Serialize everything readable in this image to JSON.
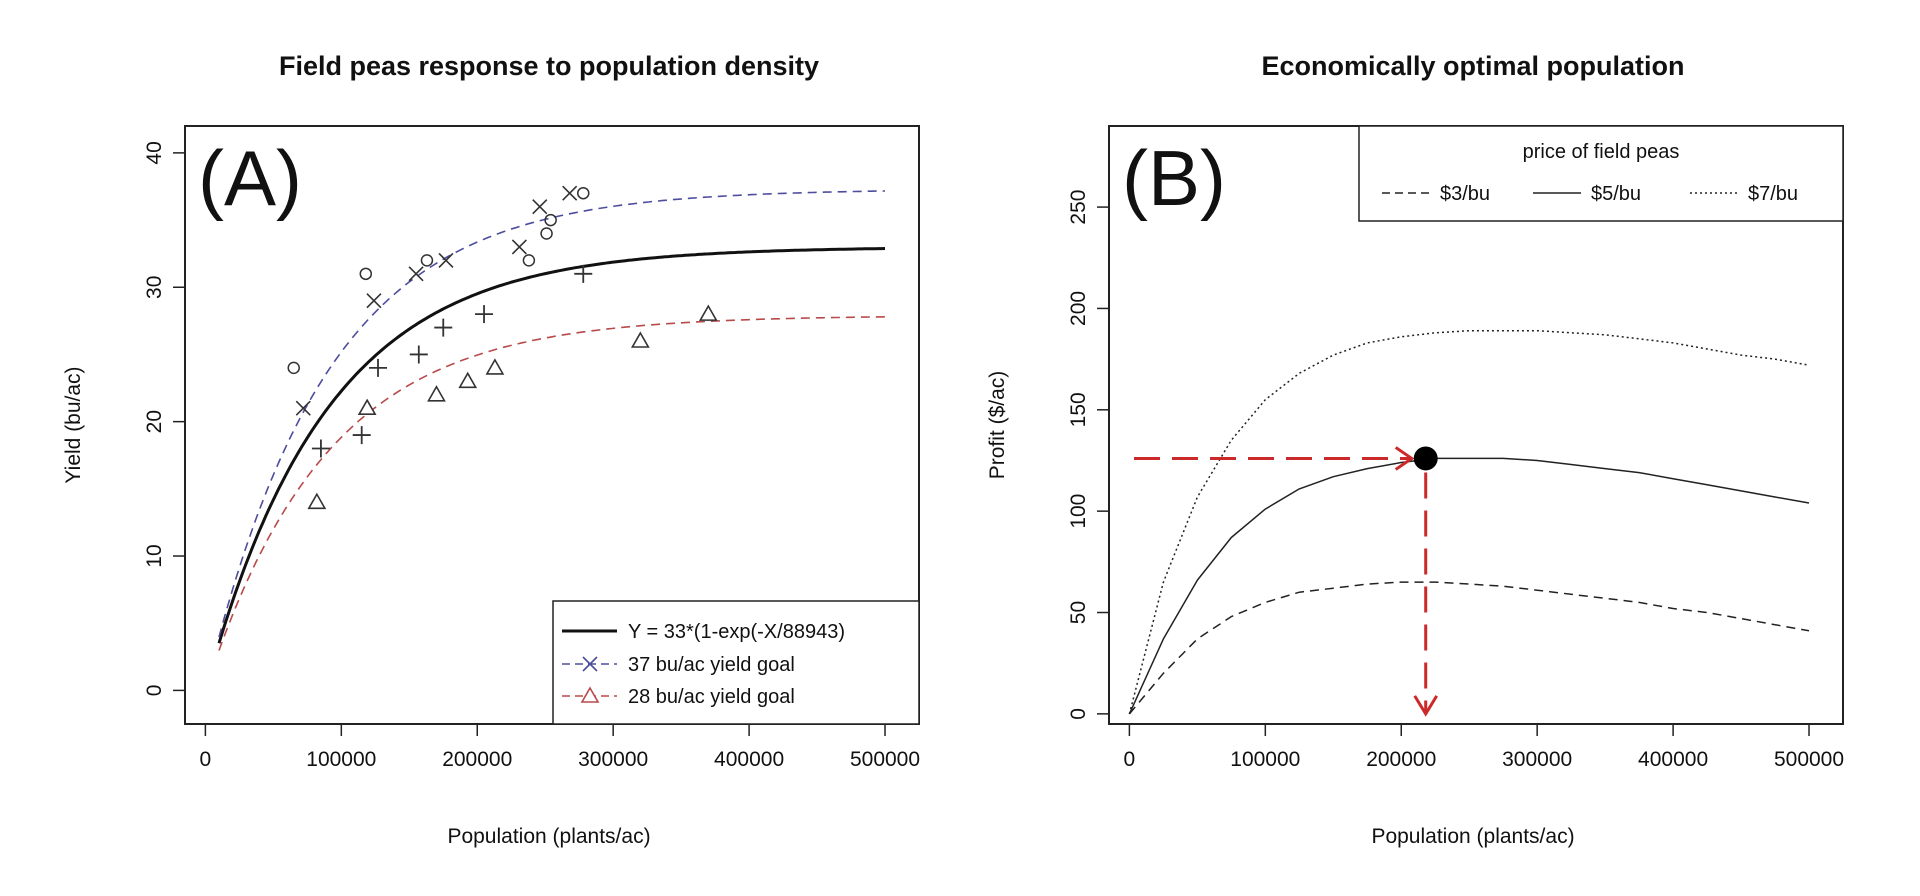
{
  "chart_data": [
    {
      "type": "scatter",
      "panel_label": "(A)",
      "title": "Field peas response to population density",
      "xlabel": "Population (plants/ac)",
      "ylabel": "Yield (bu/ac)",
      "xlim": [
        -15000,
        525000
      ],
      "ylim": [
        -2.5,
        42
      ],
      "xticks": [
        0,
        100000,
        200000,
        300000,
        400000,
        500000
      ],
      "xtick_labels": [
        "0",
        "100000",
        "200000",
        "300000",
        "400000",
        "500000"
      ],
      "yticks": [
        0,
        10,
        20,
        30,
        40
      ],
      "ytick_labels": [
        "0",
        "10",
        "20",
        "30",
        "40"
      ],
      "legend_position": "bottom-right",
      "lines": [
        {
          "name": "Y = 33*(1-exp(-X/88943)",
          "asymptote": 33,
          "rate": 88943,
          "x_start": 10000,
          "x_end": 500000,
          "color": "#111111",
          "style": "solid"
        },
        {
          "name": "37 bu/ac yield goal",
          "asymptote": 37.3,
          "rate": 88943,
          "x_start": 10000,
          "x_end": 500000,
          "color": "#4d4d9e",
          "style": "dashed",
          "marker": "x"
        },
        {
          "name": "28 bu/ac yield goal",
          "asymptote": 27.9,
          "rate": 88943,
          "x_start": 10000,
          "x_end": 500000,
          "color": "#b84a4a",
          "style": "dashed",
          "marker": "triangle"
        }
      ],
      "points": [
        {
          "marker": "circle",
          "x": [
            65000,
            118000,
            163000,
            238000,
            251000,
            254000,
            278000
          ],
          "y": [
            24,
            31,
            32,
            32,
            34,
            35,
            37
          ]
        },
        {
          "marker": "x",
          "x": [
            72000,
            124000,
            155000,
            177000,
            231000,
            246000,
            268000
          ],
          "y": [
            21,
            29,
            31,
            32,
            33,
            36,
            37
          ]
        },
        {
          "marker": "plus",
          "x": [
            85000,
            115000,
            127000,
            157000,
            175000,
            205000,
            278000
          ],
          "y": [
            18,
            19,
            24,
            25,
            27,
            28,
            31
          ]
        },
        {
          "marker": "triangle",
          "x": [
            82000,
            119000,
            170000,
            193000,
            213000,
            320000,
            370000
          ],
          "y": [
            14,
            21,
            22,
            23,
            24,
            26,
            28
          ]
        }
      ]
    },
    {
      "type": "line",
      "panel_label": "(B)",
      "title": "Economically optimal population",
      "xlabel": "Population (plants/ac)",
      "ylabel": "Profit ($/ac)",
      "xlim": [
        -15000,
        525000
      ],
      "ylim": [
        -5,
        290
      ],
      "xticks": [
        0,
        100000,
        200000,
        300000,
        400000,
        500000
      ],
      "xtick_labels": [
        "0",
        "100000",
        "200000",
        "300000",
        "400000",
        "500000"
      ],
      "yticks": [
        0,
        50,
        100,
        150,
        200,
        250
      ],
      "ytick_labels": [
        "0",
        "50",
        "100",
        "150",
        "200",
        "250"
      ],
      "legend_title": "price of field peas",
      "legend_position": "top-right",
      "series": [
        {
          "name": "$3/bu",
          "style": "dashed",
          "x": [
            0,
            25000,
            50000,
            75000,
            100000,
            125000,
            150000,
            175000,
            200000,
            225000,
            250000,
            275000,
            300000,
            325000,
            350000,
            375000,
            400000,
            425000,
            450000,
            475000,
            500000
          ],
          "y": [
            0,
            20,
            37,
            48,
            55,
            60,
            62,
            64,
            65,
            65,
            64,
            63,
            61,
            59,
            57,
            55,
            52,
            50,
            47,
            44,
            41
          ]
        },
        {
          "name": "$5/bu",
          "style": "solid",
          "x": [
            0,
            25000,
            50000,
            75000,
            100000,
            125000,
            150000,
            175000,
            200000,
            225000,
            250000,
            275000,
            300000,
            325000,
            350000,
            375000,
            400000,
            425000,
            450000,
            475000,
            500000
          ],
          "y": [
            0,
            37,
            66,
            87,
            101,
            111,
            117,
            121,
            124,
            126,
            126,
            126,
            125,
            123,
            121,
            119,
            116,
            113,
            110,
            107,
            104
          ]
        },
        {
          "name": "$7/bu",
          "style": "dotted",
          "x": [
            0,
            25000,
            50000,
            75000,
            100000,
            125000,
            150000,
            175000,
            200000,
            225000,
            250000,
            275000,
            300000,
            325000,
            350000,
            375000,
            400000,
            425000,
            450000,
            475000,
            500000
          ],
          "y": [
            0,
            65,
            107,
            135,
            155,
            168,
            177,
            183,
            186,
            188,
            189,
            189,
            189,
            188,
            187,
            185,
            183,
            180,
            177,
            175,
            172
          ]
        }
      ],
      "optimum": {
        "x": 218000,
        "y": 126
      },
      "annotation_color": "#cc2a2a"
    }
  ]
}
